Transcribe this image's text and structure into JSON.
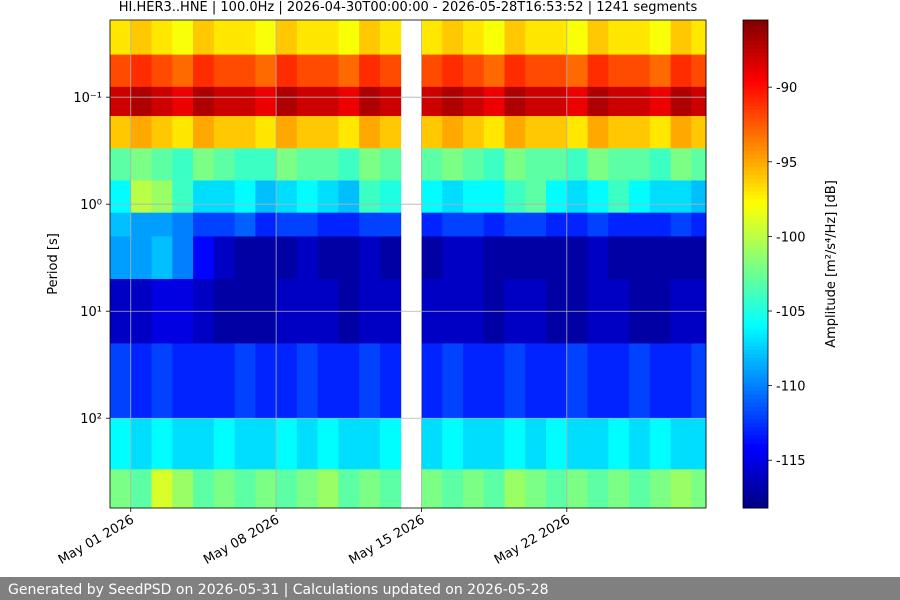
{
  "chart_data": {
    "type": "heatmap",
    "title": "HI.HER3..HNE | 100.0Hz | 2026-04-30T00:00:00 - 2026-05-28T16:53:52 | 1241 segments",
    "y_label": "Period [s]",
    "colorbar_label": "Amplitude [m²/s⁴/Hz] [dB]",
    "footer": "Generated by SeedPSD on 2026-05-31 | Calculations updated on 2026-05-28",
    "x": [
      "2026-04-30",
      "2026-05-01",
      "2026-05-02",
      "2026-05-03",
      "2026-05-04",
      "2026-05-05",
      "2026-05-06",
      "2026-05-07",
      "2026-05-08",
      "2026-05-09",
      "2026-05-10",
      "2026-05-11",
      "2026-05-12",
      "2026-05-13",
      "2026-05-14",
      "2026-05-15",
      "2026-05-16",
      "2026-05-17",
      "2026-05-18",
      "2026-05-19",
      "2026-05-20",
      "2026-05-21",
      "2026-05-22",
      "2026-05-23",
      "2026-05-24",
      "2026-05-25",
      "2026-05-26",
      "2026-05-27",
      "2026-05-28"
    ],
    "xlim": [
      "2026-04-30T00:00:00",
      "2026-05-28T16:53:52"
    ],
    "xticks": [
      {
        "value": "2026-05-01",
        "label": "May 01 2026"
      },
      {
        "value": "2026-05-08",
        "label": "May 08 2026"
      },
      {
        "value": "2026-05-15",
        "label": "May 15 2026"
      },
      {
        "value": "2026-05-22",
        "label": "May 22 2026"
      }
    ],
    "ybins": [
      0.019,
      0.04,
      0.08,
      0.15,
      0.3,
      0.6,
      1.2,
      2,
      5,
      20,
      100,
      300,
      690
    ],
    "ylim": [
      0.019,
      690
    ],
    "y_log": true,
    "y_inverted": true,
    "yticks": [
      {
        "value": 0.1,
        "label": "10⁻¹"
      },
      {
        "value": 1,
        "label": "10⁰"
      },
      {
        "value": 10,
        "label": "10¹"
      },
      {
        "value": 100,
        "label": "10²"
      }
    ],
    "grid": true,
    "colormap": "jet",
    "clim": [
      -118.2,
      -85.5
    ],
    "cticks": [
      -90,
      -95,
      -100,
      -105,
      -110,
      -115
    ],
    "z": [
      [
        -97,
        -96,
        -97,
        -98,
        -96,
        -97,
        -97,
        -98,
        -96,
        -97,
        -97,
        -98,
        -96,
        -97,
        null,
        -97,
        -96,
        -97,
        -98,
        -96,
        -97,
        -97,
        -98,
        -96,
        -97,
        -97,
        -98,
        -96,
        -97
      ],
      [
        -92,
        -91,
        -92,
        -93,
        -91,
        -92,
        -92,
        -93,
        -91,
        -92,
        -92,
        -93,
        -91,
        -92,
        null,
        -92,
        -91,
        -92,
        -93,
        -91,
        -92,
        -92,
        -93,
        -91,
        -92,
        -92,
        -93,
        -91,
        -92
      ],
      [
        -88,
        -87,
        -88,
        -89,
        -87,
        -88,
        -88,
        -89,
        -87,
        -88,
        -88,
        -89,
        -87,
        -88,
        null,
        -88,
        -87,
        -88,
        -89,
        -87,
        -88,
        -88,
        -89,
        -87,
        -88,
        -88,
        -89,
        -87,
        -88
      ],
      [
        -96,
        -95,
        -96,
        -97,
        -95,
        -96,
        -96,
        -97,
        -95,
        -96,
        -96,
        -97,
        -95,
        -96,
        null,
        -96,
        -95,
        -96,
        -97,
        -95,
        -96,
        -96,
        -97,
        -95,
        -96,
        -96,
        -97,
        -95,
        -96
      ],
      [
        -103,
        -102,
        -103,
        -104,
        -102,
        -103,
        -104,
        -104,
        -102,
        -103,
        -103,
        -104,
        -102,
        -103,
        null,
        -103,
        -102,
        -103,
        -104,
        -102,
        -103,
        -103,
        -104,
        -102,
        -103,
        -103,
        -104,
        -102,
        -103
      ],
      [
        -106,
        -100,
        -101,
        -104,
        -107,
        -107,
        -106,
        -108,
        -107,
        -106,
        -107,
        -108,
        -104,
        -105,
        null,
        -106,
        -107,
        -106,
        -106,
        -104,
        -103,
        -106,
        -107,
        -106,
        -104,
        -106,
        -107,
        -107,
        -108
      ],
      [
        -108,
        -109,
        -109,
        -110,
        -112,
        -112,
        -111,
        -113,
        -112,
        -112,
        -113,
        -113,
        -112,
        -112,
        null,
        -113,
        -112,
        -112,
        -113,
        -112,
        -112,
        -113,
        -113,
        -112,
        -113,
        -113,
        -113,
        -112,
        -113
      ],
      [
        -109,
        -109,
        -108,
        -110,
        -114,
        -116,
        -117,
        -117,
        -117,
        -116,
        -117,
        -117,
        -116,
        -117,
        null,
        -117,
        -116,
        -116,
        -117,
        -117,
        -117,
        -117,
        -117,
        -116,
        -117,
        -117,
        -117,
        -117,
        -117
      ],
      [
        -116,
        -116,
        -115,
        -115,
        -116,
        -117,
        -117,
        -117,
        -116,
        -116,
        -116,
        -117,
        -116,
        -116,
        null,
        -116,
        -116,
        -116,
        -117,
        -116,
        -116,
        -117,
        -117,
        -116,
        -116,
        -117,
        -117,
        -116,
        -116
      ],
      [
        -112,
        -113,
        -112,
        -113,
        -113,
        -113,
        -112,
        -113,
        -113,
        -112,
        -113,
        -113,
        -112,
        -113,
        null,
        -113,
        -112,
        -113,
        -113,
        -112,
        -113,
        -113,
        -112,
        -113,
        -113,
        -112,
        -113,
        -113,
        -112
      ],
      [
        -106,
        -107,
        -106,
        -107,
        -107,
        -106,
        -107,
        -107,
        -106,
        -107,
        -106,
        -107,
        -107,
        -106,
        null,
        -107,
        -106,
        -107,
        -107,
        -106,
        -107,
        -106,
        -107,
        -107,
        -106,
        -107,
        -106,
        -107,
        -107
      ],
      [
        -102,
        -103,
        -99,
        -101,
        -103,
        -102,
        -103,
        -102,
        -103,
        -102,
        -101,
        -103,
        -102,
        -103,
        null,
        -102,
        -103,
        -102,
        -103,
        -101,
        -102,
        -103,
        -102,
        -103,
        -102,
        -103,
        -102,
        -101,
        -102
      ]
    ]
  }
}
